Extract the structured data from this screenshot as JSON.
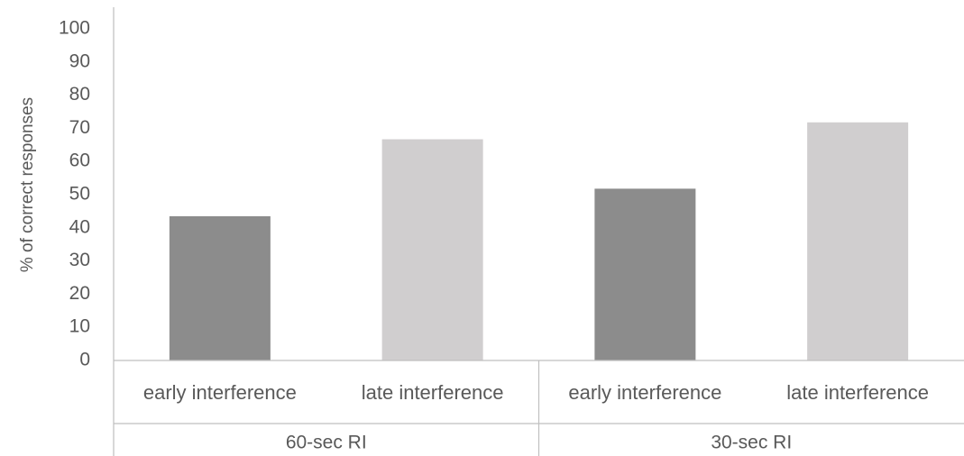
{
  "chart_data": {
    "type": "bar",
    "title": "",
    "ylabel": "% of correct responses",
    "xlabel": "",
    "ylim": [
      0,
      100
    ],
    "yticks": [
      0,
      10,
      20,
      30,
      40,
      50,
      60,
      70,
      80,
      90,
      100
    ],
    "grid": false,
    "legend": "none",
    "groups": [
      {
        "label": "60-sec RI",
        "bars": [
          {
            "category": "early interference",
            "value": 43.5,
            "color": "#8c8c8c"
          },
          {
            "category": "late interference",
            "value": 66.7,
            "color": "#d0cecf"
          }
        ]
      },
      {
        "label": "30-sec RI",
        "bars": [
          {
            "category": "early interference",
            "value": 51.8,
            "color": "#8c8c8c"
          },
          {
            "category": "late interference",
            "value": 71.8,
            "color": "#d0cecf"
          }
        ]
      }
    ]
  }
}
